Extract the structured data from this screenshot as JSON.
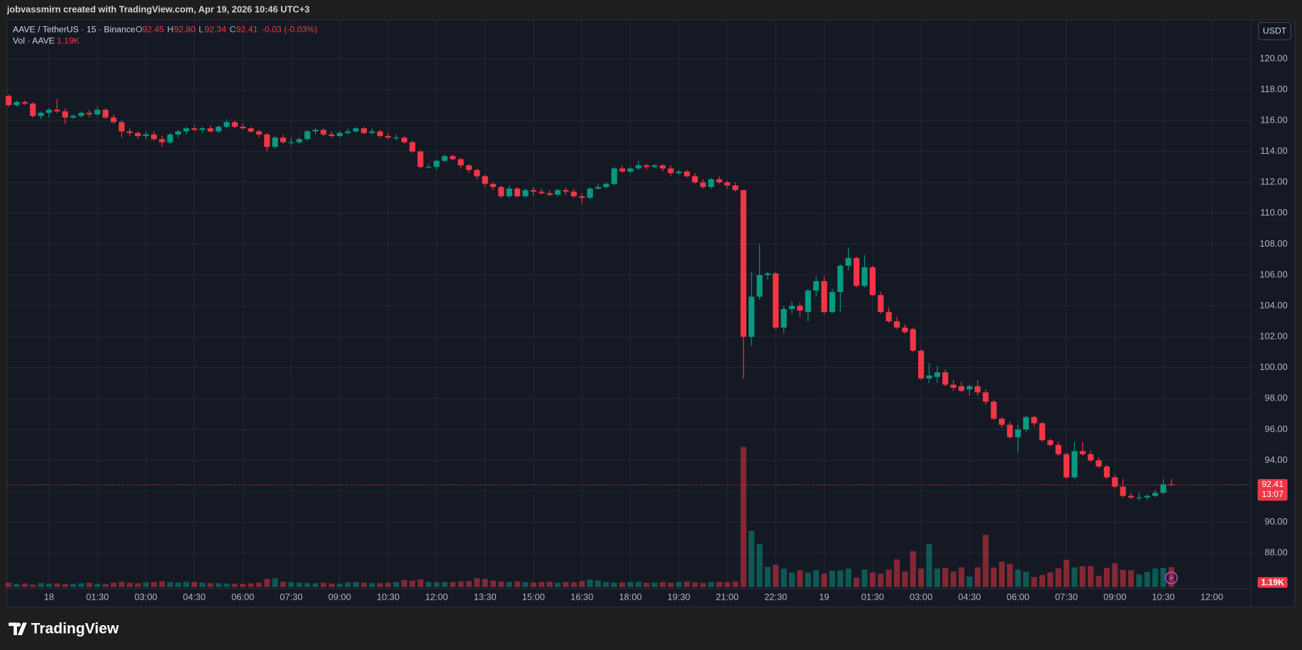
{
  "header": "jobvassmirn created with TradingView.com, Apr 19, 2026 10:46 UTC+3",
  "legend": {
    "symbol": "AAVE / TetherUS · 15 · Binance",
    "open_label": "O",
    "open": "92.45",
    "high_label": "H",
    "high": "92.80",
    "low_label": "L",
    "low": "92.34",
    "close_label": "C",
    "close": "92.41",
    "change": "-0.03 (-0.03%)",
    "volume_label": "Vol · AAVE",
    "volume": "1.19K"
  },
  "currency_button": "USDT",
  "price_tag": {
    "price": "92.41",
    "countdown": "13:07"
  },
  "logo": "TradingView",
  "chart_data": {
    "type": "candlestick",
    "up_color": "#089981",
    "down_color": "#f23645",
    "up_volume_color": "rgba(8,153,129,0.5)",
    "down_volume_color": "rgba(242,54,69,0.5)",
    "grid": true,
    "ylim": [
      85.8,
      122.52
    ],
    "yticks": [
      {
        "value": 88,
        "label": "88.00"
      },
      {
        "value": 90,
        "label": "90.00"
      },
      {
        "value": 92,
        "label": "92.00"
      },
      {
        "value": 94,
        "label": "94.00"
      },
      {
        "value": 96,
        "label": "96.00"
      },
      {
        "value": 98,
        "label": "98.00"
      },
      {
        "value": 100,
        "label": "100.00"
      },
      {
        "value": 102,
        "label": "102.00"
      },
      {
        "value": 104,
        "label": "104.00"
      },
      {
        "value": 106,
        "label": "106.00"
      },
      {
        "value": 108,
        "label": "108.00"
      },
      {
        "value": 110,
        "label": "110.00"
      },
      {
        "value": 112,
        "label": "112.00"
      },
      {
        "value": 114,
        "label": "114.00"
      },
      {
        "value": 116,
        "label": "116.00"
      },
      {
        "value": 118,
        "label": "118.00"
      },
      {
        "value": 120,
        "label": "120.00"
      }
    ],
    "xlim": [
      -0.2,
      153.86
    ],
    "xticks": [
      {
        "value": 5,
        "label": "18"
      },
      {
        "value": 11,
        "label": "01:30"
      },
      {
        "value": 17,
        "label": "03:00"
      },
      {
        "value": 23,
        "label": "04:30"
      },
      {
        "value": 29,
        "label": "06:00"
      },
      {
        "value": 35,
        "label": "07:30"
      },
      {
        "value": 41,
        "label": "09:00"
      },
      {
        "value": 47,
        "label": "10:30"
      },
      {
        "value": 53,
        "label": "12:00"
      },
      {
        "value": 59,
        "label": "13:30"
      },
      {
        "value": 65,
        "label": "15:00"
      },
      {
        "value": 71,
        "label": "16:30"
      },
      {
        "value": 77,
        "label": "18:00"
      },
      {
        "value": 83,
        "label": "19:30"
      },
      {
        "value": 89,
        "label": "21:00"
      },
      {
        "value": 95,
        "label": "22:30"
      },
      {
        "value": 101,
        "label": "19"
      },
      {
        "value": 107,
        "label": "01:30"
      },
      {
        "value": 113,
        "label": "03:00"
      },
      {
        "value": 119,
        "label": "04:30"
      },
      {
        "value": 125,
        "label": "06:00"
      },
      {
        "value": 131,
        "label": "07:30"
      },
      {
        "value": 137,
        "label": "09:00"
      },
      {
        "value": 143,
        "label": "10:30"
      },
      {
        "value": 149,
        "label": "12:00"
      }
    ],
    "volume_ylim": [
      0,
      34000
    ],
    "candles": [
      [
        117.6,
        117.7,
        116.9,
        117.0
      ],
      [
        117.0,
        117.3,
        116.9,
        117.2
      ],
      [
        117.2,
        117.3,
        117.0,
        117.1
      ],
      [
        117.1,
        117.2,
        116.2,
        116.3
      ],
      [
        116.3,
        116.6,
        116.1,
        116.5
      ],
      [
        116.5,
        116.8,
        116.2,
        116.7
      ],
      [
        116.7,
        117.4,
        116.5,
        116.6
      ],
      [
        116.6,
        116.8,
        115.8,
        116.2
      ],
      [
        116.2,
        116.4,
        116.1,
        116.3
      ],
      [
        116.3,
        116.6,
        116.2,
        116.5
      ],
      [
        116.5,
        116.7,
        116.2,
        116.4
      ],
      [
        116.4,
        116.9,
        116.3,
        116.7
      ],
      [
        116.7,
        116.8,
        116.1,
        116.2
      ],
      [
        116.2,
        116.4,
        115.8,
        115.9
      ],
      [
        115.9,
        116.0,
        114.9,
        115.3
      ],
      [
        115.3,
        115.5,
        115.0,
        115.2
      ],
      [
        115.2,
        115.3,
        114.8,
        115.0
      ],
      [
        115.0,
        115.3,
        114.8,
        115.1
      ],
      [
        115.1,
        115.3,
        114.7,
        114.8
      ],
      [
        114.8,
        115.0,
        114.3,
        114.6
      ],
      [
        114.6,
        115.2,
        114.5,
        115.1
      ],
      [
        115.1,
        115.4,
        114.9,
        115.3
      ],
      [
        115.3,
        115.6,
        115.1,
        115.5
      ],
      [
        115.5,
        115.7,
        115.3,
        115.4
      ],
      [
        115.4,
        115.6,
        115.2,
        115.5
      ],
      [
        115.5,
        115.7,
        115.2,
        115.3
      ],
      [
        115.3,
        115.7,
        115.2,
        115.6
      ],
      [
        115.6,
        116.1,
        115.5,
        115.9
      ],
      [
        115.9,
        116.0,
        115.5,
        115.6
      ],
      [
        115.6,
        115.8,
        115.4,
        115.5
      ],
      [
        115.5,
        115.6,
        115.2,
        115.3
      ],
      [
        115.3,
        115.4,
        114.9,
        115.1
      ],
      [
        115.1,
        115.2,
        114.0,
        114.3
      ],
      [
        114.3,
        115.0,
        114.2,
        114.9
      ],
      [
        114.9,
        115.1,
        114.5,
        114.6
      ],
      [
        114.6,
        114.9,
        114.4,
        114.6
      ],
      [
        114.6,
        114.9,
        114.5,
        114.8
      ],
      [
        114.8,
        115.4,
        114.7,
        115.3
      ],
      [
        115.3,
        115.5,
        115.1,
        115.4
      ],
      [
        115.4,
        115.5,
        115.0,
        115.1
      ],
      [
        115.1,
        115.3,
        114.9,
        115.0
      ],
      [
        115.0,
        115.3,
        114.9,
        115.2
      ],
      [
        115.2,
        115.5,
        115.1,
        115.3
      ],
      [
        115.3,
        115.6,
        115.2,
        115.5
      ],
      [
        115.5,
        115.6,
        115.1,
        115.2
      ],
      [
        115.2,
        115.5,
        115.1,
        115.3
      ],
      [
        115.3,
        115.4,
        114.9,
        115.0
      ],
      [
        115.0,
        115.2,
        114.8,
        114.9
      ],
      [
        114.9,
        115.1,
        114.7,
        114.9
      ],
      [
        114.9,
        115.0,
        114.5,
        114.6
      ],
      [
        114.6,
        114.7,
        113.9,
        114.0
      ],
      [
        114.0,
        114.1,
        112.9,
        113.0
      ],
      [
        113.0,
        113.2,
        112.9,
        113.0
      ],
      [
        113.0,
        113.5,
        112.8,
        113.4
      ],
      [
        113.4,
        113.8,
        113.3,
        113.7
      ],
      [
        113.7,
        113.8,
        113.4,
        113.5
      ],
      [
        113.5,
        113.6,
        112.9,
        113.1
      ],
      [
        113.1,
        113.2,
        112.6,
        112.8
      ],
      [
        112.8,
        112.9,
        112.2,
        112.4
      ],
      [
        112.4,
        112.5,
        111.7,
        111.9
      ],
      [
        111.9,
        112.0,
        111.5,
        111.7
      ],
      [
        111.7,
        111.8,
        111.0,
        111.1
      ],
      [
        111.1,
        111.8,
        111.0,
        111.6
      ],
      [
        111.6,
        111.7,
        111.0,
        111.1
      ],
      [
        111.1,
        111.6,
        111.0,
        111.5
      ],
      [
        111.5,
        111.7,
        111.1,
        111.4
      ],
      [
        111.4,
        111.6,
        111.2,
        111.3
      ],
      [
        111.3,
        111.5,
        111.1,
        111.2
      ],
      [
        111.2,
        111.6,
        111.1,
        111.5
      ],
      [
        111.5,
        111.7,
        111.2,
        111.4
      ],
      [
        111.4,
        111.6,
        111.0,
        111.1
      ],
      [
        111.1,
        111.3,
        110.6,
        111.0
      ],
      [
        111.0,
        111.7,
        110.9,
        111.6
      ],
      [
        111.6,
        111.9,
        111.5,
        111.7
      ],
      [
        111.7,
        112.0,
        111.6,
        111.9
      ],
      [
        111.9,
        113.0,
        111.8,
        112.9
      ],
      [
        112.9,
        113.1,
        112.6,
        112.7
      ],
      [
        112.7,
        113.0,
        112.6,
        112.9
      ],
      [
        112.9,
        113.4,
        112.8,
        113.1
      ],
      [
        113.1,
        113.2,
        112.8,
        113.0
      ],
      [
        113.0,
        113.2,
        112.9,
        113.1
      ],
      [
        113.1,
        113.2,
        112.7,
        112.9
      ],
      [
        112.9,
        113.1,
        112.4,
        112.6
      ],
      [
        112.6,
        112.8,
        112.5,
        112.7
      ],
      [
        112.7,
        112.8,
        112.3,
        112.4
      ],
      [
        112.4,
        112.6,
        111.9,
        112.0
      ],
      [
        112.0,
        112.2,
        111.6,
        111.7
      ],
      [
        111.7,
        112.3,
        111.6,
        112.2
      ],
      [
        112.2,
        112.4,
        111.9,
        112.0
      ],
      [
        112.0,
        112.1,
        111.6,
        111.8
      ],
      [
        111.8,
        112.0,
        111.4,
        111.5
      ],
      [
        111.5,
        111.5,
        99.3,
        102.0
      ],
      [
        102.0,
        106.2,
        101.4,
        104.6
      ],
      [
        104.6,
        108.0,
        104.4,
        106.0
      ],
      [
        106.0,
        106.2,
        105.7,
        106.1
      ],
      [
        106.1,
        106.2,
        102.5,
        102.6
      ],
      [
        102.6,
        104.0,
        102.2,
        103.8
      ],
      [
        103.8,
        104.3,
        103.5,
        104.0
      ],
      [
        104.0,
        104.2,
        103.3,
        103.7
      ],
      [
        103.6,
        105.1,
        103.0,
        105.0
      ],
      [
        105.0,
        105.9,
        104.6,
        105.6
      ],
      [
        105.6,
        105.9,
        103.5,
        103.6
      ],
      [
        103.6,
        105.1,
        103.5,
        104.9
      ],
      [
        104.9,
        106.7,
        103.6,
        106.6
      ],
      [
        106.6,
        107.8,
        106.3,
        107.1
      ],
      [
        107.1,
        107.2,
        105.2,
        105.3
      ],
      [
        105.3,
        107.3,
        105.2,
        106.5
      ],
      [
        106.5,
        106.6,
        104.6,
        104.7
      ],
      [
        104.7,
        104.9,
        103.5,
        103.6
      ],
      [
        103.6,
        103.9,
        102.9,
        103.0
      ],
      [
        103.0,
        103.3,
        102.5,
        102.6
      ],
      [
        102.6,
        102.8,
        102.2,
        102.3
      ],
      [
        102.5,
        102.6,
        101.0,
        101.1
      ],
      [
        101.1,
        101.2,
        99.2,
        99.3
      ],
      [
        99.3,
        100.3,
        99.0,
        99.5
      ],
      [
        99.4,
        100.1,
        99.0,
        99.7
      ],
      [
        99.7,
        99.9,
        98.8,
        98.9
      ],
      [
        98.9,
        99.2,
        98.5,
        98.7
      ],
      [
        98.8,
        99.1,
        98.4,
        98.5
      ],
      [
        98.6,
        98.9,
        98.2,
        98.8
      ],
      [
        98.8,
        99.2,
        98.2,
        98.4
      ],
      [
        98.4,
        98.6,
        97.6,
        97.8
      ],
      [
        97.8,
        97.9,
        96.6,
        96.7
      ],
      [
        96.7,
        96.8,
        96.1,
        96.3
      ],
      [
        96.3,
        96.5,
        95.4,
        95.5
      ],
      [
        95.5,
        96.3,
        94.5,
        96.0
      ],
      [
        96.0,
        96.9,
        95.8,
        96.8
      ],
      [
        96.8,
        96.9,
        96.2,
        96.4
      ],
      [
        96.4,
        96.5,
        95.2,
        95.3
      ],
      [
        95.3,
        95.4,
        94.9,
        95.0
      ],
      [
        95.0,
        95.2,
        94.3,
        94.4
      ],
      [
        94.4,
        94.5,
        92.8,
        92.9
      ],
      [
        92.9,
        95.2,
        92.8,
        94.6
      ],
      [
        94.6,
        95.2,
        94.3,
        94.4
      ],
      [
        94.4,
        94.6,
        93.9,
        94.0
      ],
      [
        94.0,
        94.2,
        93.5,
        93.6
      ],
      [
        93.6,
        93.7,
        92.8,
        92.9
      ],
      [
        92.9,
        93.1,
        92.2,
        92.3
      ],
      [
        92.3,
        92.8,
        91.6,
        91.7
      ],
      [
        91.7,
        91.9,
        91.5,
        91.6
      ],
      [
        91.6,
        91.9,
        91.4,
        91.6
      ],
      [
        91.6,
        91.8,
        91.4,
        91.7
      ],
      [
        91.7,
        92.1,
        91.6,
        91.9
      ],
      [
        91.9,
        92.8,
        91.8,
        92.45
      ],
      [
        92.45,
        92.8,
        92.34,
        92.41
      ]
    ],
    "volume": [
      260,
      180,
      210,
      150,
      240,
      200,
      220,
      170,
      190,
      230,
      250,
      200,
      180,
      260,
      310,
      250,
      220,
      280,
      300,
      350,
      290,
      270,
      320,
      300,
      260,
      240,
      230,
      210,
      200,
      190,
      220,
      260,
      480,
      520,
      310,
      290,
      260,
      240,
      230,
      250,
      210,
      200,
      280,
      300,
      260,
      240,
      230,
      260,
      300,
      420,
      380,
      460,
      310,
      280,
      300,
      290,
      330,
      360,
      520,
      480,
      380,
      330,
      300,
      340,
      290,
      270,
      300,
      320,
      260,
      300,
      280,
      360,
      440,
      380,
      300,
      260,
      280,
      300,
      320,
      250,
      270,
      290,
      260,
      300,
      330,
      280,
      250,
      300,
      310,
      290,
      330,
      8400,
      3370,
      2570,
      1200,
      1330,
      1100,
      870,
      1000,
      870,
      1000,
      800,
      970,
      1000,
      1100,
      560,
      1050,
      880,
      800,
      1050,
      1650,
      930,
      2150,
      1100,
      2580,
      1100,
      1150,
      930,
      1180,
      620,
      1180,
      3130,
      1170,
      1530,
      1390,
      1050,
      920,
      600,
      720,
      880,
      1120,
      1630,
      1180,
      1250,
      1250,
      670,
      1150,
      1420,
      1030,
      1010,
      760,
      900,
      1100,
      1150,
      1190
    ]
  }
}
